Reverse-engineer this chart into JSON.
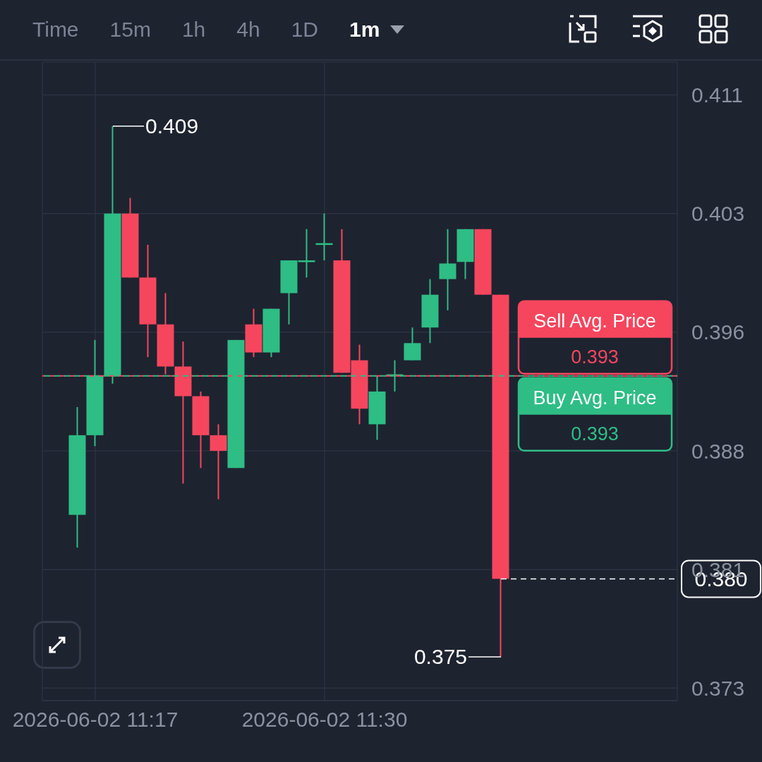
{
  "chart_data": {
    "type": "candlestick",
    "x": [
      "2026-06-02T11:16",
      "2026-06-02T11:17",
      "2026-06-02T11:18",
      "2026-06-02T11:19",
      "2026-06-02T11:20",
      "2026-06-02T11:21",
      "2026-06-02T11:22",
      "2026-06-02T11:23",
      "2026-06-02T11:24",
      "2026-06-02T11:25",
      "2026-06-02T11:26",
      "2026-06-02T11:27",
      "2026-06-02T11:28",
      "2026-06-02T11:29",
      "2026-06-02T11:30",
      "2026-06-02T11:31",
      "2026-06-02T11:32",
      "2026-06-02T11:33",
      "2026-06-02T11:34",
      "2026-06-02T11:35",
      "2026-06-02T11:36",
      "2026-06-02T11:37",
      "2026-06-02T11:38",
      "2026-06-02T11:39",
      "2026-06-02T11:40"
    ],
    "ohlc": [
      [
        0.3841,
        0.391,
        0.382,
        0.3892
      ],
      [
        0.3892,
        0.3953,
        0.3885,
        0.393
      ],
      [
        0.393,
        0.409,
        0.3925,
        0.4034
      ],
      [
        0.4034,
        0.4044,
        0.3993,
        0.3993
      ],
      [
        0.3993,
        0.4014,
        0.3942,
        0.3963
      ],
      [
        0.3963,
        0.3983,
        0.3931,
        0.3936
      ],
      [
        0.3936,
        0.3952,
        0.3861,
        0.3917
      ],
      [
        0.3917,
        0.392,
        0.3871,
        0.3892
      ],
      [
        0.3892,
        0.3899,
        0.3851,
        0.3882
      ],
      [
        0.3871,
        0.3953,
        0.3871,
        0.3953
      ],
      [
        0.3963,
        0.3973,
        0.3942,
        0.3945
      ],
      [
        0.3945,
        0.3973,
        0.3942,
        0.3973
      ],
      [
        0.3983,
        0.4004,
        0.3963,
        0.4004
      ],
      [
        0.4003,
        0.4024,
        0.3993,
        0.4004
      ],
      [
        0.4014,
        0.4034,
        0.4004,
        0.4015
      ],
      [
        0.4004,
        0.4024,
        0.3932,
        0.3932
      ],
      [
        0.394,
        0.395,
        0.3899,
        0.3909
      ],
      [
        0.3899,
        0.393,
        0.3889,
        0.392
      ],
      [
        0.393,
        0.394,
        0.392,
        0.3931
      ],
      [
        0.394,
        0.3961,
        0.394,
        0.3951
      ],
      [
        0.3961,
        0.3992,
        0.3951,
        0.3982
      ],
      [
        0.3992,
        0.4024,
        0.3972,
        0.4002
      ],
      [
        0.4003,
        0.4024,
        0.3992,
        0.4024
      ],
      [
        0.4024,
        0.4024,
        0.3982,
        0.3982
      ],
      [
        0.3982,
        0.3982,
        0.375,
        0.38
      ]
    ],
    "colors": [
      "#2ebd85",
      "#2ebd85",
      "#2ebd85",
      "#f6465d",
      "#f6465d",
      "#f6465d",
      "#f6465d",
      "#f6465d",
      "#f6465d",
      "#2ebd85",
      "#f6465d",
      "#2ebd85",
      "#2ebd85",
      "#2ebd85",
      "#2ebd85",
      "#f6465d",
      "#f6465d",
      "#2ebd85",
      "#2ebd85",
      "#2ebd85",
      "#2ebd85",
      "#2ebd85",
      "#2ebd85",
      "#f6465d",
      "#f6465d"
    ],
    "xlim": [
      "2026-06-02T11:14",
      "2026-06-02T11:50"
    ],
    "xticks": [
      {
        "value": "2026-06-02T11:17",
        "label": "2026-06-02 11:17"
      },
      {
        "value": "2026-06-02T11:30",
        "label": "2026-06-02 11:30"
      }
    ],
    "ylim": [
      0.3722,
      0.4131
    ],
    "yticks": [
      0.373,
      {
        "value": 0.3806,
        "label": "0.381"
      },
      {
        "value": 0.3882,
        "label": "0.388"
      },
      {
        "value": 0.3958,
        "label": "0.396"
      },
      {
        "value": 0.4034,
        "label": "0.403"
      },
      0.411
    ],
    "grid": true,
    "ref_lines": [
      {
        "axis": "y",
        "value": 0.393,
        "label": "Sell Avg. Price",
        "color": "#f6465d",
        "line_style": "dashed"
      },
      {
        "axis": "y",
        "value": 0.393,
        "label": "Buy Avg. Price",
        "color": "#2ebd85",
        "line_style": "dashed"
      },
      {
        "axis": "y",
        "value": 0.38,
        "label": "0.380",
        "color": "#ffffff",
        "line_style": "dashed"
      }
    ],
    "annotations": [
      "Time",
      "15m",
      "1h",
      "4h",
      "1D",
      "1m",
      {
        "text": "0.393",
        "y": 0.393
      },
      {
        "text": "0.393",
        "y": 0.393
      },
      {
        "text": "0.409",
        "x": "2026-06-02T11:18",
        "y": 0.409
      },
      {
        "text": "0.375",
        "x": "2026-06-02T11:40",
        "y": 0.375
      }
    ]
  }
}
